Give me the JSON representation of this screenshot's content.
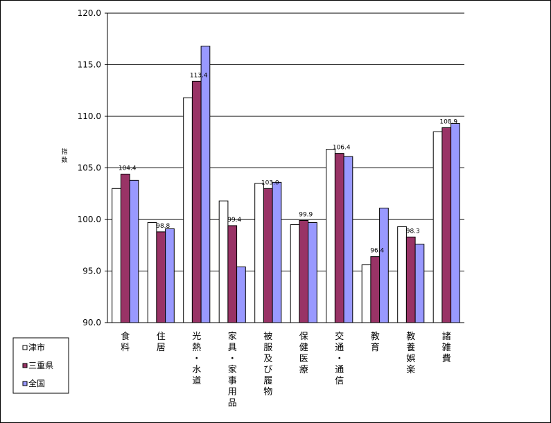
{
  "chart_data": {
    "type": "bar",
    "title": "",
    "xlabel": "",
    "ylabel": "指数",
    "ylim": [
      90.0,
      120.0
    ],
    "yticks": [
      "120.0",
      "115.0",
      "110.0",
      "105.0",
      "100.0",
      "95.0",
      "90.0"
    ],
    "grid": true,
    "legend_position": "bottom-left",
    "categories": [
      "食料",
      "住居",
      "光熱・水道",
      "家具・家事用品",
      "被服及び履物",
      "保健医療",
      "交通・通信",
      "教育",
      "教養娯楽",
      "諸雑費"
    ],
    "series": [
      {
        "name": "津市",
        "color": "#ffffff",
        "values": [
          103.0,
          99.7,
          111.8,
          101.8,
          103.5,
          99.5,
          106.8,
          95.6,
          99.3,
          108.5
        ]
      },
      {
        "name": "三重県",
        "color": "#993366",
        "values": [
          104.4,
          98.8,
          113.4,
          99.4,
          103.0,
          99.9,
          106.4,
          96.4,
          98.3,
          108.9
        ]
      },
      {
        "name": "全国",
        "color": "#9999ff",
        "values": [
          103.8,
          99.1,
          116.8,
          95.4,
          103.6,
          99.7,
          106.1,
          101.1,
          97.6,
          109.3
        ]
      }
    ],
    "data_labels": {
      "series_index": 1,
      "labels": [
        "104.4",
        "98.8",
        "113.4",
        "99.4",
        "103.0",
        "99.9",
        "106.4",
        "96.4",
        "98.3",
        "108.9"
      ]
    }
  }
}
